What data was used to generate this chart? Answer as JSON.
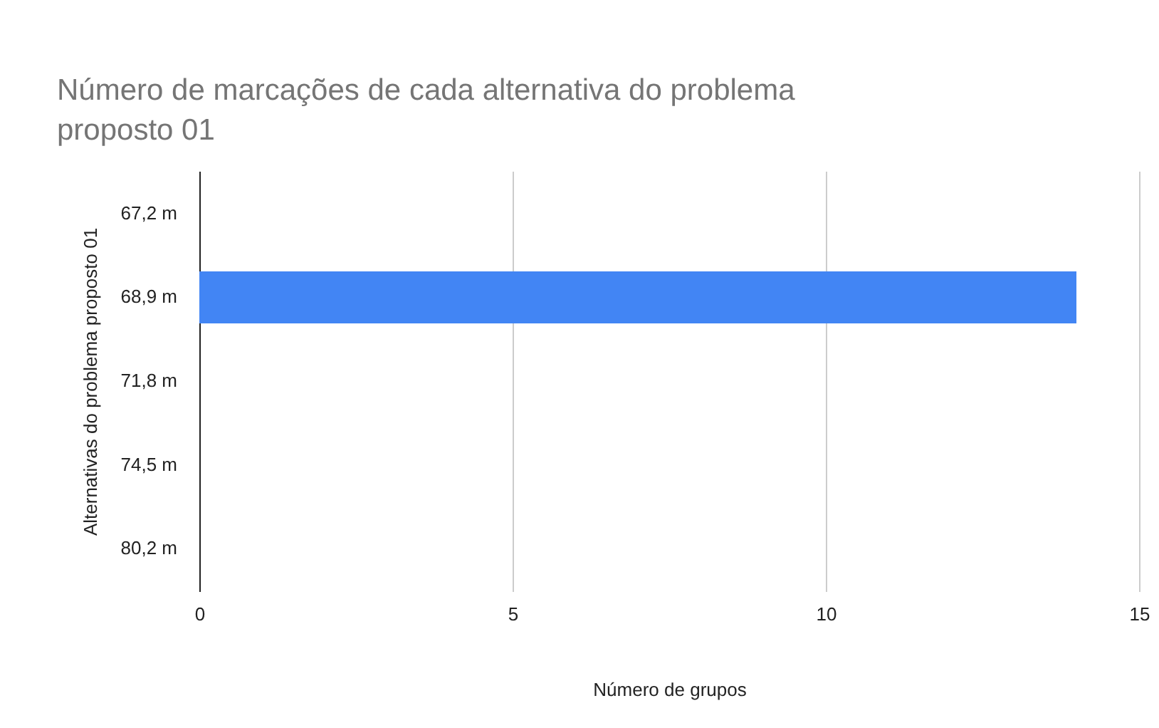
{
  "chart_data": {
    "type": "bar",
    "orientation": "horizontal",
    "title": "Número de marcações de cada alternativa do problema proposto 01",
    "xlabel": "Número de grupos",
    "ylabel": "Alternativas do problema proposto 01",
    "categories": [
      "67,2 m",
      "68,9 m",
      "71,8 m",
      "74,5 m",
      "80,2 m"
    ],
    "values": [
      0,
      14,
      0,
      0,
      0
    ],
    "color": "#4285f4",
    "xlim": [
      0,
      15
    ],
    "xticks": [
      0,
      5,
      10,
      15
    ],
    "grid": "x"
  }
}
